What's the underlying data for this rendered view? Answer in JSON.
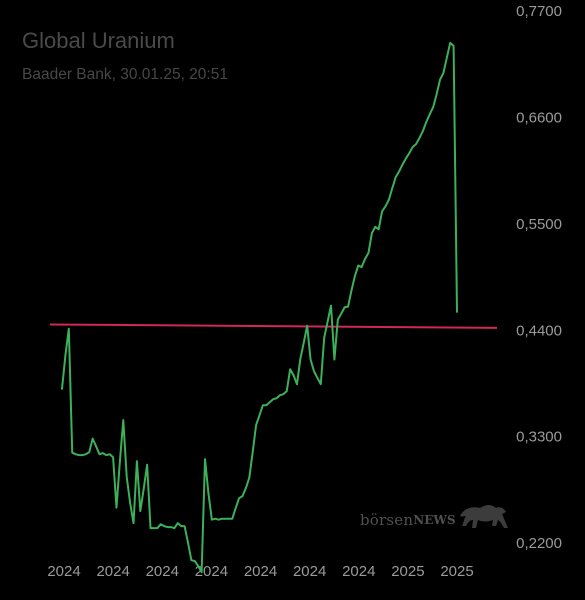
{
  "title": "Global Uranium",
  "subtitle": "Baader Bank, 30.01.25, 20:51",
  "watermark": {
    "text_regular": "börsen",
    "text_bold": "NEWS",
    "icon": "bull-icon"
  },
  "colors": {
    "background": "#000000",
    "line": "#3db05a",
    "reference_line": "#d0285a",
    "axis_text": "#9a9a9a",
    "title_text": "#4a4a4a"
  },
  "chart_data": {
    "type": "line",
    "title": "Global Uranium",
    "subtitle": "Baader Bank, 30.01.25, 20:51",
    "xlabel": "",
    "ylabel": "",
    "ylim": [
      0.16,
      0.7806
    ],
    "y_ticks": [
      0.77,
      0.66,
      0.55,
      0.44,
      0.33,
      0.22
    ],
    "y_tick_labels": [
      "0,7700",
      "0,6600",
      "0,5500",
      "0,4400",
      "0,3300",
      "0,2200"
    ],
    "x_tick_labels": [
      "2024",
      "2024",
      "2024",
      "2024",
      "2024",
      "2024",
      "2024",
      "2025",
      "2025"
    ],
    "grid": false,
    "legend": "none",
    "reference_line": {
      "start": 0.445,
      "end": 0.4415
    },
    "series": [
      {
        "values": [
          0.3784,
          0.413,
          0.4407,
          0.3124,
          0.3108,
          0.3098,
          0.3098,
          0.3108,
          0.3129,
          0.3269,
          0.3191,
          0.3108,
          0.3119,
          0.3098,
          0.3108,
          0.3077,
          0.2555,
          0.3036,
          0.346,
          0.2875,
          0.2606,
          0.2395,
          0.3036,
          0.2519,
          0.2751,
          0.2999,
          0.2343,
          0.2343,
          0.2343,
          0.2384,
          0.2364,
          0.2354,
          0.2354,
          0.2343,
          0.2395,
          0.2364,
          0.2364,
          0.2193,
          0.2012,
          0.2002,
          0.1951,
          0.1888,
          0.3057,
          0.2705,
          0.2431,
          0.2441,
          0.2431,
          0.2441,
          0.2441,
          0.2441,
          0.2441,
          0.255,
          0.2653,
          0.2674,
          0.2757,
          0.2865,
          0.3129,
          0.3409,
          0.3512,
          0.3615,
          0.3615,
          0.3646,
          0.3677,
          0.3687,
          0.3718,
          0.3729,
          0.376,
          0.3987,
          0.3925,
          0.3832,
          0.4096,
          0.4262,
          0.4437,
          0.4086,
          0.3966,
          0.3898,
          0.3832,
          0.4314,
          0.4479,
          0.4645,
          0.4087,
          0.45,
          0.4562,
          0.4628,
          0.4634,
          0.48,
          0.4949,
          0.5059,
          0.5044,
          0.5128,
          0.519,
          0.5394,
          0.546,
          0.5434,
          0.562,
          0.5672,
          0.574,
          0.5861,
          0.5974,
          0.6033,
          0.6105,
          0.6167,
          0.6223,
          0.6286,
          0.6317,
          0.638,
          0.6452,
          0.6546,
          0.6625,
          0.6697,
          0.6829,
          0.698,
          0.705,
          0.7207,
          0.7363,
          0.7332,
          0.458
        ]
      }
    ]
  }
}
